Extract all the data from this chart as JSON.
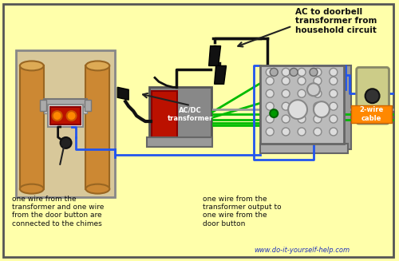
{
  "bg_color": "#FFFFAA",
  "border_color": "#555555",
  "title_text": "AC to doorbell\ntransformer from\nhousehold circuit",
  "label_chimes": "one wire from the\ntransformer and one wire\nfrom the door button are\nconnected to the chimes",
  "label_button": "one wire from the\ntransformer output to\none wire from the\ndoor button",
  "label_cable": "2-wire\ncable",
  "label_transformer": "AC/DC\ntransformer",
  "website": "www.do-it-yourself-help.com",
  "wire_blue": "#2255EE",
  "wire_green": "#00BB00",
  "wire_black": "#111111",
  "wire_white": "#BBBBBB",
  "wire_gray": "#999999",
  "orange_label_bg": "#FF8800",
  "chimes_bg": "#D8C89A",
  "chimes_border": "#888888",
  "junction_box_bg": "#BBBBBB",
  "junction_box_border": "#666666",
  "transformer_gray": "#888888",
  "transformer_red": "#BB1100",
  "pipe_color": "#CC8833",
  "pipe_dark": "#996622",
  "figsize": [
    5.0,
    3.27
  ],
  "dpi": 100
}
